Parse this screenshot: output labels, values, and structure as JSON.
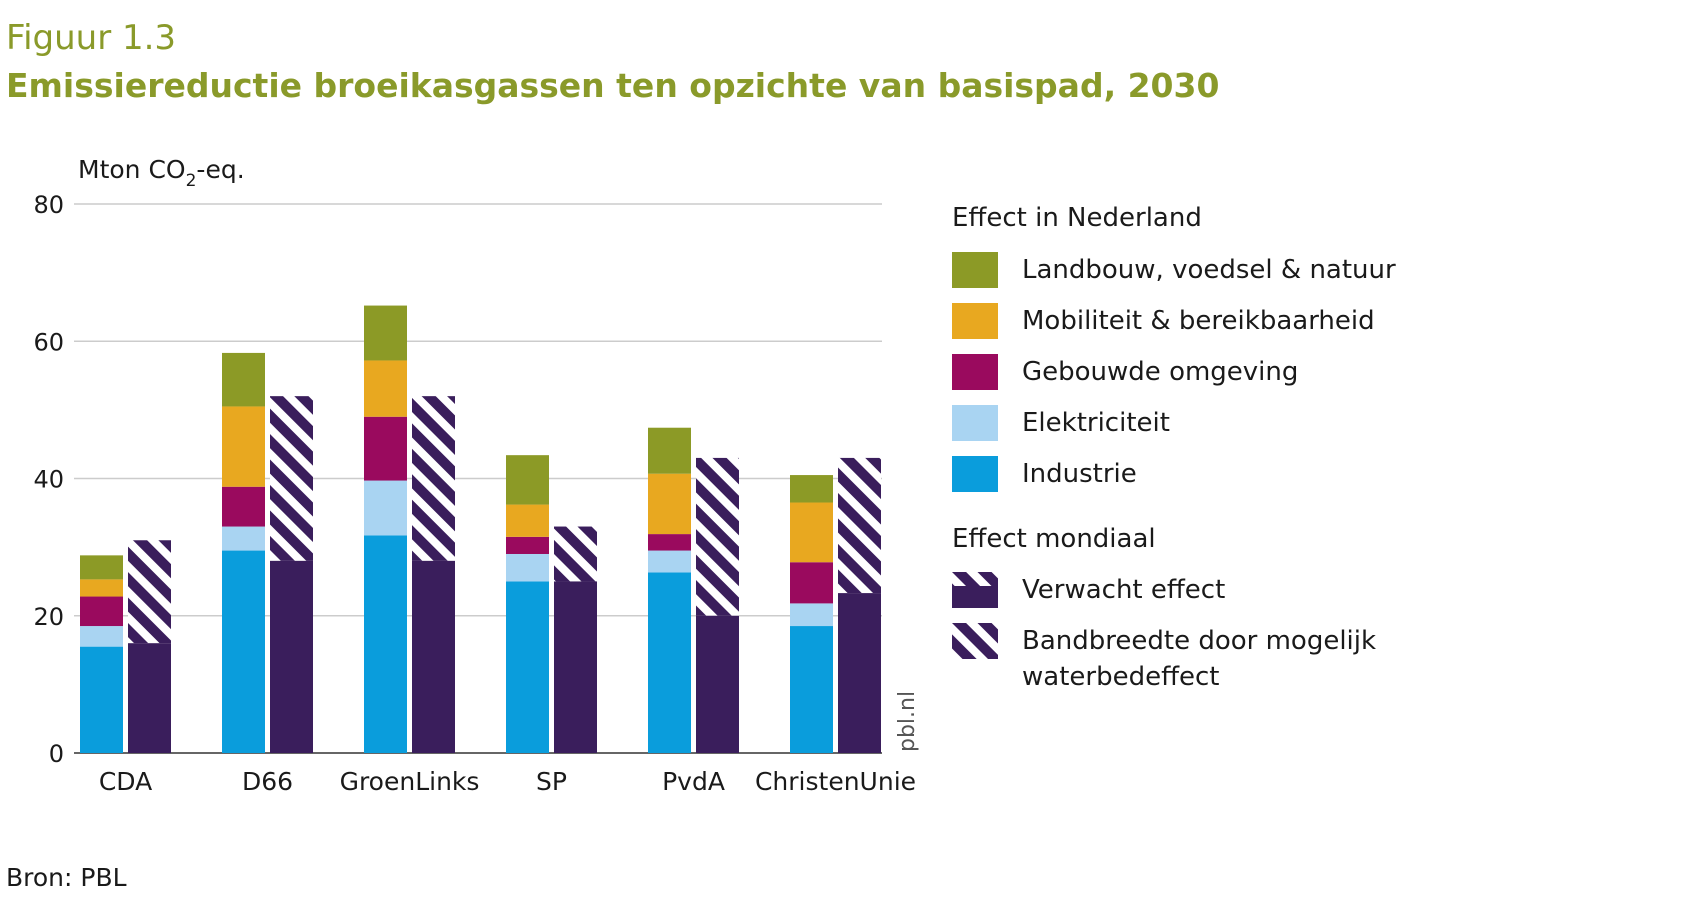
{
  "figure_label": "Figuur 1.3",
  "figure_title": "Emissiereductie broeikasgassen ten opzichte van basispad, 2030",
  "source": "Bron: PBL",
  "watermark": "pbl.nl",
  "colors": {
    "landbouw": "#8c9a26",
    "mobiliteit": "#e8a820",
    "gebouwd": "#9a0a5e",
    "elektriciteit": "#a9d4f2",
    "industrie": "#0a9ddc",
    "mondiaal": "#3a1e5c",
    "grid": "#cccccc",
    "axis": "#666666"
  },
  "legend": {
    "heading_nl": "Effect in Nederland",
    "heading_mondiaal": "Effect mondiaal",
    "items_nl": [
      {
        "key": "landbouw",
        "label": "Landbouw, voedsel & natuur"
      },
      {
        "key": "mobiliteit",
        "label": "Mobiliteit & bereikbaarheid"
      },
      {
        "key": "gebouwd",
        "label": "Gebouwde omgeving"
      },
      {
        "key": "elektriciteit",
        "label": "Elektriciteit"
      },
      {
        "key": "industrie",
        "label": "Industrie"
      }
    ],
    "items_mondiaal": [
      {
        "key": "verwacht",
        "label": "Verwacht effect"
      },
      {
        "key": "bandbreedte",
        "label": "Bandbreedte door mogelijk waterbedeffect"
      }
    ]
  },
  "chart_data": {
    "type": "bar",
    "ylabel": "Mton CO₂-eq.",
    "ylim": [
      0,
      80
    ],
    "yticks": [
      0,
      20,
      40,
      60,
      80
    ],
    "grid": true,
    "categories": [
      "CDA",
      "D66",
      "GroenLinks",
      "SP",
      "PvdA",
      "ChristenUnie"
    ],
    "series_nl": [
      {
        "name": "Industrie",
        "key": "industrie",
        "values": [
          15.5,
          29.5,
          31.7,
          25,
          26.3,
          18.5
        ]
      },
      {
        "name": "Elektriciteit",
        "key": "elektriciteit",
        "values": [
          3,
          3.5,
          8,
          4,
          3.2,
          3.3
        ]
      },
      {
        "name": "Gebouwde omgeving",
        "key": "gebouwd",
        "values": [
          4.3,
          5.8,
          9.3,
          2.5,
          2.4,
          6
        ]
      },
      {
        "name": "Mobiliteit & bereikbaarheid",
        "key": "mobiliteit",
        "values": [
          2.5,
          11.7,
          8.2,
          4.7,
          8.8,
          8.7
        ]
      },
      {
        "name": "Landbouw, voedsel & natuur",
        "key": "landbouw",
        "values": [
          3.5,
          7.8,
          8,
          7.2,
          6.7,
          4
        ]
      }
    ],
    "mondiaal": {
      "verwacht_effect": [
        16,
        28,
        28,
        25,
        20,
        23.3
      ],
      "bandbreedte_top": [
        31,
        52,
        52,
        33,
        43,
        43
      ]
    }
  }
}
